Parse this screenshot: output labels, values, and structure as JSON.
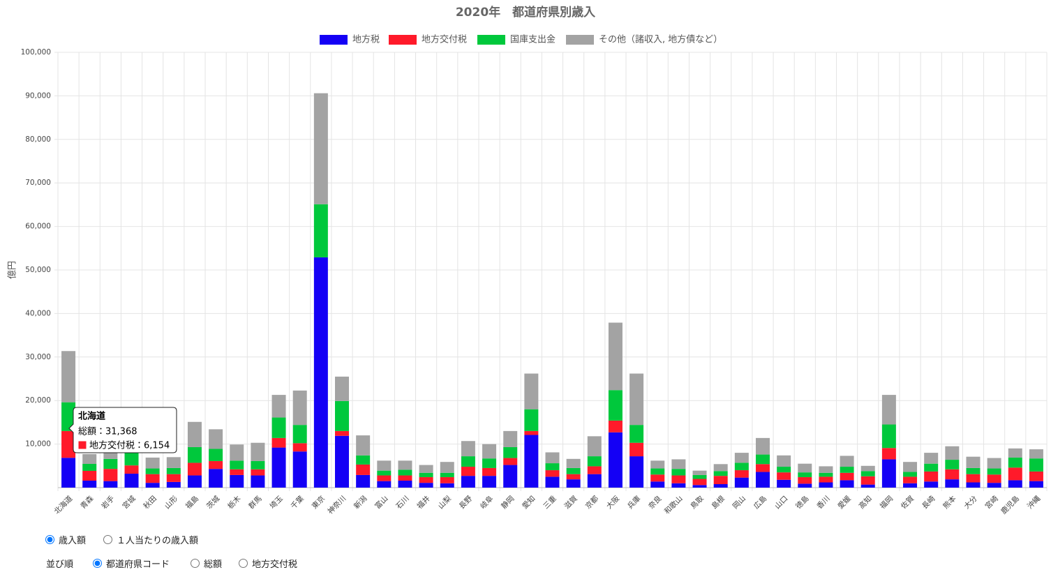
{
  "chart_data": {
    "type": "stacked_bar",
    "title": "2020年　都道府県別歳入",
    "y_label": "億円",
    "categories": [
      "北海道",
      "青森",
      "岩手",
      "宮城",
      "秋田",
      "山形",
      "福島",
      "茨城",
      "栃木",
      "群馬",
      "埼玉",
      "千葉",
      "東京",
      "神奈川",
      "新潟",
      "富山",
      "石川",
      "福井",
      "山梨",
      "長野",
      "岐阜",
      "静岡",
      "愛知",
      "三重",
      "滋賀",
      "京都",
      "大阪",
      "兵庫",
      "奈良",
      "和歌山",
      "鳥取",
      "島根",
      "岡山",
      "広島",
      "山口",
      "徳島",
      "香川",
      "愛媛",
      "高知",
      "福岡",
      "佐賀",
      "長崎",
      "熊本",
      "大分",
      "宮崎",
      "鹿児島",
      "沖縄"
    ],
    "series": [
      {
        "name": "地方税",
        "color": "#1400f5",
        "values": [
          6850,
          1600,
          1500,
          3200,
          1100,
          1300,
          2800,
          4300,
          2900,
          2800,
          9200,
          8300,
          52900,
          11900,
          2900,
          1500,
          1600,
          1100,
          1000,
          2700,
          2700,
          5200,
          12100,
          2500,
          1900,
          3100,
          12700,
          7200,
          1400,
          1000,
          600,
          800,
          2300,
          3600,
          1800,
          900,
          1200,
          1700,
          700,
          6500,
          1000,
          1400,
          1900,
          1200,
          1100,
          1700,
          1500
        ]
      },
      {
        "name": "地方交付税",
        "color": "#ff1a2a",
        "values": [
          6154,
          2250,
          2800,
          1900,
          2000,
          1800,
          2900,
          1800,
          1300,
          1400,
          2200,
          1900,
          0,
          1100,
          2400,
          1300,
          1200,
          1300,
          1400,
          2100,
          1800,
          1600,
          900,
          1500,
          1200,
          1800,
          2700,
          3100,
          1600,
          1800,
          1400,
          1900,
          1700,
          1800,
          1700,
          1500,
          1300,
          1700,
          1900,
          2600,
          1500,
          2300,
          2300,
          1900,
          1900,
          2900,
          2200
        ]
      },
      {
        "name": "国庫支出金",
        "color": "#00c83c",
        "values": [
          6600,
          1600,
          2300,
          2900,
          1300,
          1400,
          3600,
          2800,
          2000,
          1900,
          4700,
          4200,
          12200,
          6900,
          2100,
          1100,
          1300,
          1000,
          1000,
          2400,
          2200,
          2500,
          5000,
          1600,
          1400,
          2300,
          7000,
          4100,
          1400,
          1500,
          900,
          1100,
          1700,
          2200,
          1300,
          1100,
          900,
          1400,
          1200,
          5400,
          1100,
          1800,
          2200,
          1400,
          1400,
          2300,
          3000
        ]
      },
      {
        "name": "その他（諸収入, 地方債など）",
        "color": "#a3a3a3",
        "values": [
          11764,
          2250,
          3900,
          3000,
          2500,
          2500,
          5800,
          4500,
          3700,
          4200,
          5200,
          7900,
          25500,
          5600,
          4600,
          2300,
          2100,
          1800,
          2500,
          3500,
          3300,
          3700,
          8200,
          2500,
          2100,
          4600,
          15500,
          11800,
          1800,
          2200,
          1000,
          1600,
          2300,
          3800,
          2600,
          2000,
          1500,
          2500,
          1200,
          6800,
          2300,
          2500,
          3100,
          2600,
          2400,
          2100,
          2100
        ]
      }
    ],
    "ylim": [
      0,
      100000
    ],
    "yticks": [
      {
        "value": 10000,
        "label": "10,000"
      },
      {
        "value": 20000,
        "label": "20,000"
      },
      {
        "value": 30000,
        "label": "30,000"
      },
      {
        "value": 40000,
        "label": "40,000"
      },
      {
        "value": 50000,
        "label": "50,000"
      },
      {
        "value": 60000,
        "label": "60,000"
      },
      {
        "value": 70000,
        "label": "70,000"
      },
      {
        "value": 80000,
        "label": "80,000"
      },
      {
        "value": 90000,
        "label": "90,000"
      },
      {
        "value": 100000,
        "label": "100,000"
      }
    ],
    "grid": true,
    "legend": "top",
    "tooltip": {
      "title": "北海道",
      "lines": [
        "総額：31,368",
        "地方交付税：6,154"
      ]
    }
  },
  "controls": {
    "mode": [
      "歳入額",
      "１人当たりの歳入額"
    ],
    "sort_label": "並び順",
    "sort": [
      "都道府県コード",
      "総額",
      "地方交付税"
    ]
  }
}
